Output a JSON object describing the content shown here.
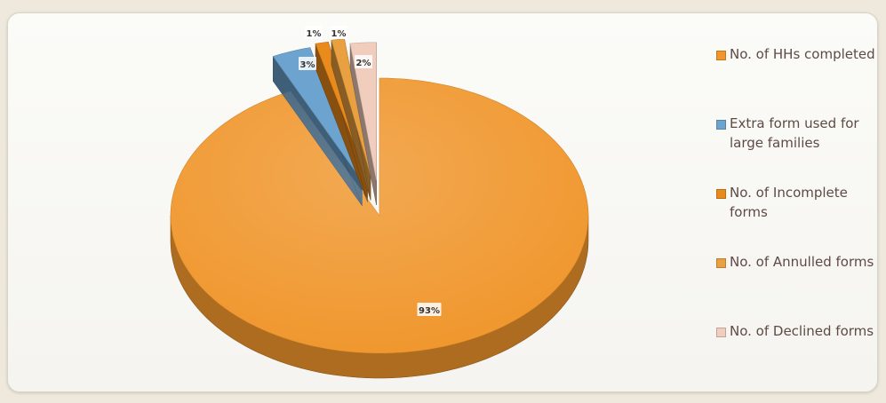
{
  "chart_data": {
    "type": "pie",
    "title": "",
    "style": "3d-exploded",
    "slices": [
      {
        "label": "No. of HHs completed",
        "value": 93,
        "display": "93%",
        "color": "#f0962c"
      },
      {
        "label": "Extra form used for large families",
        "value": 3,
        "display": "3%",
        "color": "#6da3cf"
      },
      {
        "label": "No. of Incomplete forms",
        "value": 1,
        "display": "1%",
        "color": "#e88a1c"
      },
      {
        "label": "No. of Annulled forms",
        "value": 1,
        "display": "1%",
        "color": "#e8a040"
      },
      {
        "label": "No. of Declined forms",
        "value": 2,
        "display": "2%",
        "color": "#f0cdbc"
      }
    ],
    "legend_position": "right"
  }
}
